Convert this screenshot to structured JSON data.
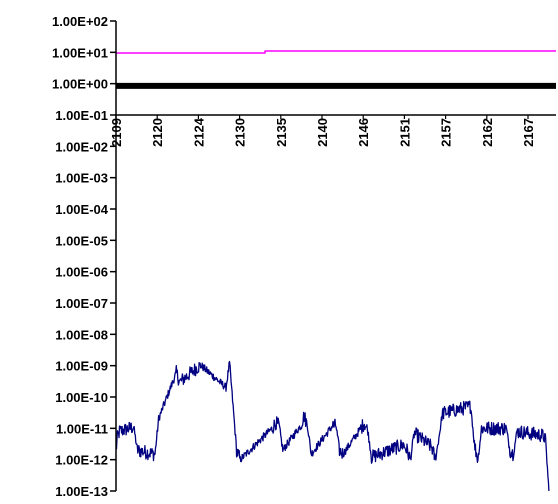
{
  "chart_data": {
    "type": "line",
    "title": "",
    "xlabel": "",
    "ylabel": "",
    "y_scale": "log",
    "ylim": [
      1e-13,
      100
    ],
    "y_tick_labels": [
      "1.00E+02",
      "1.00E+01",
      "1.00E+00",
      "1.00E-01",
      "1.00E-02",
      "1.00E-03",
      "1.00E-04",
      "1.00E-05",
      "1.00E-06",
      "1.00E-07",
      "1.00E-08",
      "1.00E-09",
      "1.00E-10",
      "1.00E-11",
      "1.00E-12",
      "1.00E-13"
    ],
    "x_tick_labels": [
      "2109",
      "2120",
      "2124",
      "2130",
      "2135",
      "2140",
      "2146",
      "2151",
      "2157",
      "2162",
      "2167"
    ],
    "xlim": [
      2109,
      2171
    ],
    "x_axis_crosses_y": 0.1,
    "grid": false,
    "legend": "none",
    "series": [
      {
        "color": "#ff00ff",
        "style": "step",
        "x": [
          2109,
          2130,
          2130,
          2171
        ],
        "y": [
          9.5,
          9.5,
          11,
          11
        ]
      },
      {
        "color": "#000000",
        "style": "thick",
        "x": [
          2109,
          2171
        ],
        "y": [
          0.85,
          0.85
        ]
      },
      {
        "color": "#000080",
        "style": "noisy",
        "x": [
          2109,
          2109.2,
          2109.5,
          2111.5,
          2112,
          2114.5,
          2115,
          2117.5,
          2118,
          2120.5,
          2121,
          2124.5,
          2125,
          2126,
          2126.5,
          2131,
          2131.5,
          2132,
          2132.5,
          2135,
          2135.5,
          2136,
          2136.5,
          2139.5,
          2140,
          2140.5,
          2141,
          2143.5,
          2144,
          2144.5,
          2145,
          2149.5,
          2150,
          2150.5,
          2151,
          2153.5,
          2154,
          2154.5,
          2155,
          2159,
          2159.5,
          2160,
          2160.5,
          2164,
          2164.5,
          2165,
          2165.5,
          2169,
          2169.5,
          2170
        ],
        "y": [
          2e-12,
          5e-12,
          8e-12,
          1.1e-11,
          2e-12,
          1.5e-12,
          2e-11,
          6e-10,
          3e-10,
          9e-10,
          1e-09,
          2e-10,
          1.2e-09,
          2e-12,
          1e-12,
          1e-11,
          1.5e-11,
          1.2e-11,
          2e-12,
          1.2e-11,
          2.5e-11,
          1.2e-11,
          1.5e-12,
          1.2e-11,
          1.2e-11,
          2e-12,
          1.5e-12,
          1e-11,
          1.5e-11,
          8e-12,
          1.2e-12,
          3e-12,
          2e-12,
          1e-12,
          7e-12,
          2.5e-12,
          1e-12,
          5e-12,
          3e-11,
          5e-11,
          3e-12,
          1e-12,
          1e-11,
          1e-11,
          2e-12,
          1.5e-12,
          8e-12,
          6e-12,
          5e-12,
          1e-13
        ]
      }
    ]
  }
}
